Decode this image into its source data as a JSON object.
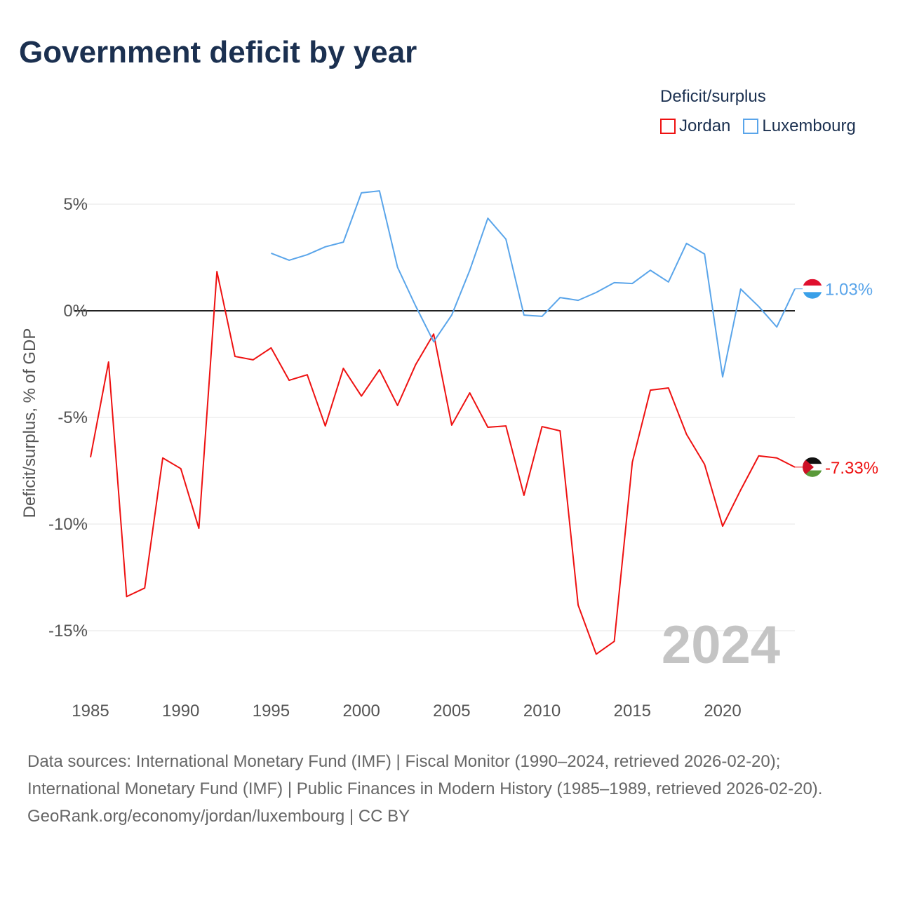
{
  "title": "Government deficit by year",
  "legend": {
    "title": "Deficit/surplus",
    "items": [
      {
        "name": "Jordan",
        "color": "#ee1111"
      },
      {
        "name": "Luxembourg",
        "color": "#5aa5ea"
      }
    ]
  },
  "watermark_year": "2024",
  "footer": {
    "sources": "Data sources: International Monetary Fund (IMF) | Fiscal Monitor (1990–2024, retrieved 2026-02-20); International Monetary Fund (IMF) | Public Finances in Modern History (1985–1989, retrieved 2026-02-20).",
    "credit": "GeoRank.org/economy/jordan/luxembourg | CC BY"
  },
  "chart_data": {
    "type": "line",
    "title": "Government deficit by year",
    "xlabel": "",
    "ylabel": "Deficit/surplus, % of GDP",
    "xlim": [
      1985,
      2024
    ],
    "ylim": [
      -17,
      6
    ],
    "x_ticks": [
      "1985",
      "1990",
      "1995",
      "2000",
      "2005",
      "2010",
      "2015",
      "2020"
    ],
    "y_ticks": [
      {
        "v": 5,
        "label": "5%"
      },
      {
        "v": 0,
        "label": "0%"
      },
      {
        "v": -5,
        "label": "-5%"
      },
      {
        "v": -10,
        "label": "-10%"
      },
      {
        "v": -15,
        "label": "-15%"
      }
    ],
    "grid": true,
    "legend_position": "top-right",
    "series": [
      {
        "name": "Jordan",
        "color": "#ee1111",
        "end_label": "-7.33%",
        "x": [
          1985,
          1986,
          1987,
          1988,
          1989,
          1990,
          1991,
          1992,
          1993,
          1994,
          1995,
          1996,
          1997,
          1998,
          1999,
          2000,
          2001,
          2002,
          2003,
          2004,
          2005,
          2006,
          2007,
          2008,
          2009,
          2010,
          2011,
          2012,
          2013,
          2014,
          2015,
          2016,
          2017,
          2018,
          2019,
          2020,
          2021,
          2022,
          2023,
          2024
        ],
        "values": [
          -6.87,
          -2.4,
          -13.4,
          -13.0,
          -6.9,
          -7.4,
          -10.2,
          1.84,
          -2.14,
          -2.3,
          -1.74,
          -3.26,
          -3.0,
          -5.4,
          -2.7,
          -4.0,
          -2.76,
          -4.44,
          -2.53,
          -1.09,
          -5.36,
          -3.85,
          -5.46,
          -5.4,
          -8.65,
          -5.43,
          -5.63,
          -13.8,
          -16.1,
          -15.5,
          -7.1,
          -3.72,
          -3.62,
          -5.79,
          -7.2,
          -10.1,
          -8.4,
          -6.8,
          -6.9,
          -7.33
        ]
      },
      {
        "name": "Luxembourg",
        "color": "#5aa5ea",
        "end_label": "1.03%",
        "x": [
          1995,
          1996,
          1997,
          1998,
          1999,
          2000,
          2001,
          2002,
          2003,
          2004,
          2005,
          2006,
          2007,
          2008,
          2009,
          2010,
          2011,
          2012,
          2013,
          2014,
          2015,
          2016,
          2017,
          2018,
          2019,
          2020,
          2021,
          2022,
          2023,
          2024
        ],
        "values": [
          2.7,
          2.37,
          2.63,
          3.0,
          3.22,
          5.53,
          5.62,
          2.04,
          0.23,
          -1.45,
          -0.2,
          1.9,
          4.34,
          3.36,
          -0.2,
          -0.26,
          0.62,
          0.49,
          0.86,
          1.32,
          1.28,
          1.9,
          1.35,
          3.16,
          2.66,
          -3.1,
          1.02,
          0.2,
          -0.76,
          1.03
        ]
      }
    ]
  }
}
